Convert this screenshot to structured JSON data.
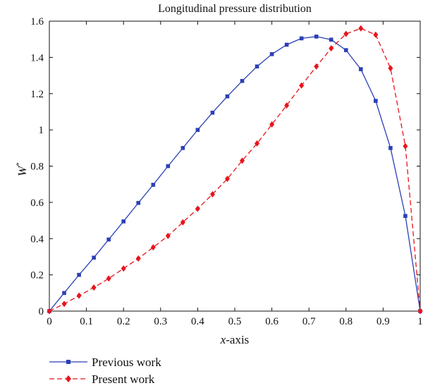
{
  "chart_data": {
    "type": "line",
    "title": "Longitudinal pressure distribution",
    "xlabel": {
      "var": "x",
      "suffix": "-axis"
    },
    "ylabel": {
      "var": "W",
      "sup": "*"
    },
    "xlim": [
      0,
      1
    ],
    "ylim": [
      0,
      1.6
    ],
    "xticks": [
      "0",
      "0.1",
      "0.2",
      "0.3",
      "0.4",
      "0.5",
      "0.6",
      "0.7",
      "0.8",
      "0.9",
      "1"
    ],
    "yticks": [
      "0",
      "0.2",
      "0.4",
      "0.6",
      "0.8",
      "1",
      "1.2",
      "1.4",
      "1.6"
    ],
    "xtick_values": [
      0,
      0.1,
      0.2,
      0.3,
      0.4,
      0.5,
      0.6,
      0.7,
      0.8,
      0.9,
      1
    ],
    "ytick_values": [
      0,
      0.2,
      0.4,
      0.6,
      0.8,
      1,
      1.2,
      1.4,
      1.6
    ],
    "grid": false,
    "legend_position": "bottom-left, below plot",
    "series": [
      {
        "name": "Previous work",
        "color": "#2b3fb5",
        "line_style": "solid",
        "marker": "square",
        "x": [
          0,
          0.04,
          0.08,
          0.12,
          0.16,
          0.2,
          0.24,
          0.28,
          0.32,
          0.36,
          0.4,
          0.44,
          0.48,
          0.52,
          0.56,
          0.6,
          0.64,
          0.68,
          0.72,
          0.76,
          0.8,
          0.84,
          0.88,
          0.92,
          0.96,
          1.0
        ],
        "y": [
          0,
          0.1,
          0.2,
          0.295,
          0.395,
          0.495,
          0.597,
          0.697,
          0.8,
          0.9,
          1.0,
          1.095,
          1.185,
          1.27,
          1.35,
          1.418,
          1.47,
          1.505,
          1.515,
          1.498,
          1.44,
          1.335,
          1.16,
          0.9,
          0.525,
          0
        ]
      },
      {
        "name": "Present work",
        "color": "#e8141c",
        "line_style": "dashed",
        "marker": "diamond",
        "x": [
          0,
          0.04,
          0.08,
          0.12,
          0.16,
          0.2,
          0.24,
          0.28,
          0.32,
          0.36,
          0.4,
          0.44,
          0.48,
          0.52,
          0.56,
          0.6,
          0.64,
          0.68,
          0.72,
          0.76,
          0.8,
          0.84,
          0.88,
          0.92,
          0.96,
          1.0
        ],
        "y": [
          0,
          0.04,
          0.085,
          0.13,
          0.18,
          0.235,
          0.29,
          0.352,
          0.415,
          0.49,
          0.565,
          0.645,
          0.73,
          0.83,
          0.925,
          1.03,
          1.135,
          1.245,
          1.35,
          1.45,
          1.53,
          1.56,
          1.525,
          1.34,
          0.91,
          0
        ]
      }
    ]
  }
}
